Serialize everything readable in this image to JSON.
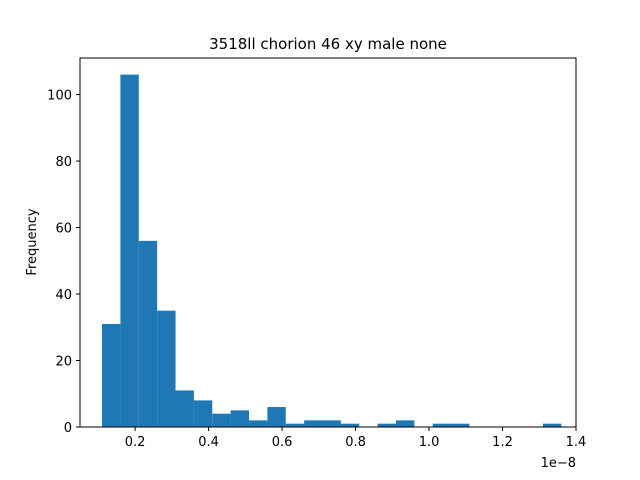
{
  "chart_data": {
    "type": "bar",
    "title": "3518ll chorion 46 xy male none",
    "xlabel": "",
    "ylabel": "Frequency",
    "x_offset_label": "1e−8",
    "bar_color": "#1f77b4",
    "grid": false,
    "legend": "none",
    "xlim": [
      0.05,
      1.4
    ],
    "ylim": [
      0,
      111
    ],
    "x_ticks": [
      0.2,
      0.4,
      0.6,
      0.8,
      1.0,
      1.2,
      1.4
    ],
    "x_tick_labels": [
      "0.2",
      "0.4",
      "0.6",
      "0.8",
      "1.0",
      "1.2",
      "1.4"
    ],
    "y_ticks": [
      0,
      20,
      40,
      60,
      80,
      100
    ],
    "y_tick_labels": [
      "0",
      "20",
      "40",
      "60",
      "80",
      "100"
    ],
    "bins": [
      {
        "x0": 0.11,
        "x1": 0.16,
        "count": 31
      },
      {
        "x0": 0.16,
        "x1": 0.21,
        "count": 106
      },
      {
        "x0": 0.21,
        "x1": 0.26,
        "count": 56
      },
      {
        "x0": 0.26,
        "x1": 0.31,
        "count": 35
      },
      {
        "x0": 0.31,
        "x1": 0.36,
        "count": 11
      },
      {
        "x0": 0.36,
        "x1": 0.41,
        "count": 8
      },
      {
        "x0": 0.41,
        "x1": 0.46,
        "count": 4
      },
      {
        "x0": 0.46,
        "x1": 0.51,
        "count": 5
      },
      {
        "x0": 0.51,
        "x1": 0.56,
        "count": 2
      },
      {
        "x0": 0.56,
        "x1": 0.61,
        "count": 6
      },
      {
        "x0": 0.61,
        "x1": 0.66,
        "count": 1
      },
      {
        "x0": 0.66,
        "x1": 0.71,
        "count": 2
      },
      {
        "x0": 0.71,
        "x1": 0.76,
        "count": 2
      },
      {
        "x0": 0.76,
        "x1": 0.81,
        "count": 1
      },
      {
        "x0": 0.81,
        "x1": 0.86,
        "count": 0
      },
      {
        "x0": 0.86,
        "x1": 0.91,
        "count": 1
      },
      {
        "x0": 0.91,
        "x1": 0.96,
        "count": 2
      },
      {
        "x0": 0.96,
        "x1": 1.01,
        "count": 0
      },
      {
        "x0": 1.01,
        "x1": 1.06,
        "count": 1
      },
      {
        "x0": 1.06,
        "x1": 1.11,
        "count": 1
      },
      {
        "x0": 1.11,
        "x1": 1.16,
        "count": 0
      },
      {
        "x0": 1.16,
        "x1": 1.21,
        "count": 0
      },
      {
        "x0": 1.21,
        "x1": 1.26,
        "count": 0
      },
      {
        "x0": 1.26,
        "x1": 1.31,
        "count": 0
      },
      {
        "x0": 1.31,
        "x1": 1.36,
        "count": 1
      }
    ]
  }
}
